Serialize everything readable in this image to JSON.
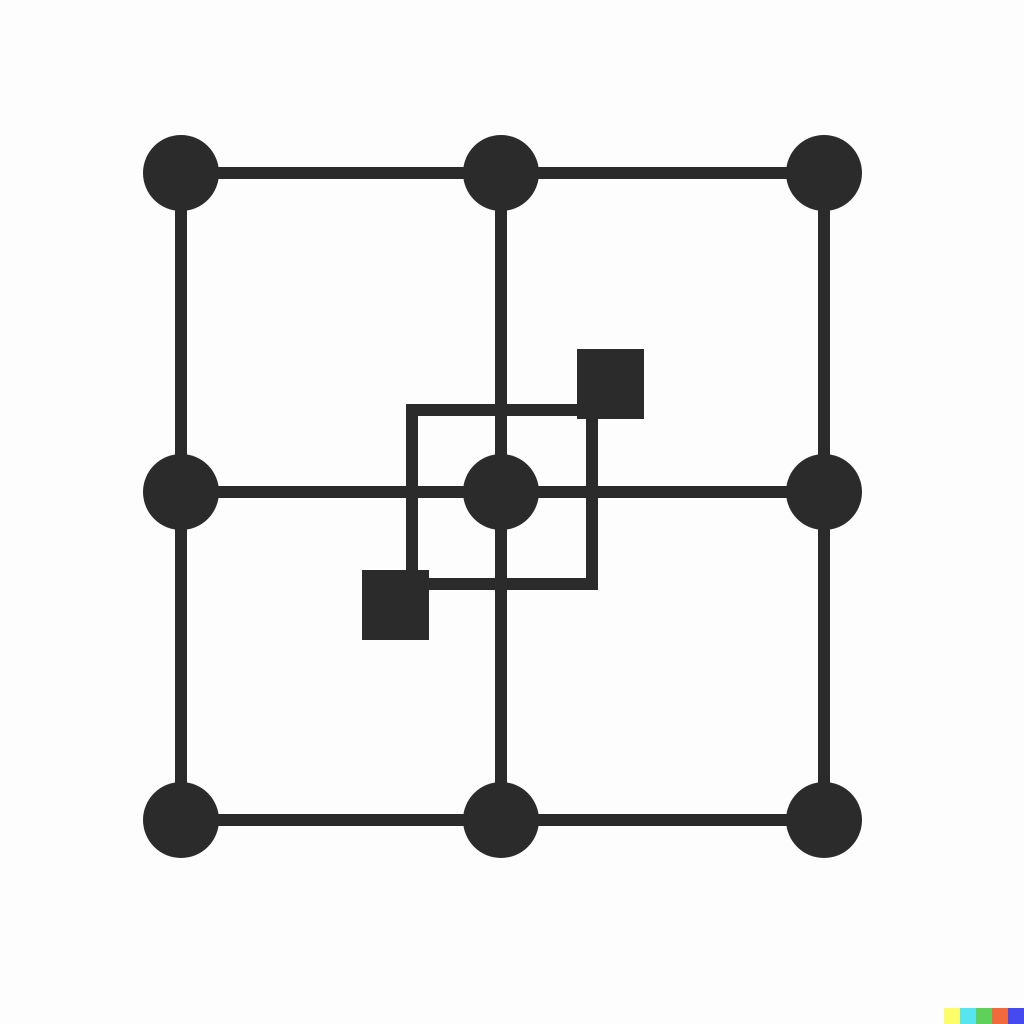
{
  "diagram": {
    "grid": {
      "rows": 3,
      "cols": 3
    },
    "colors": {
      "ink": "#2c2b2c",
      "background": "#fdfdfd"
    },
    "inner_square": {
      "description_shape": "outlined-square"
    },
    "accent_squares": [
      {
        "corner": "top-right"
      },
      {
        "corner": "bottom-left"
      }
    ]
  },
  "watermark": {
    "colors": [
      "#fdfd6a",
      "#57e5ef",
      "#5fd15a",
      "#f26a3c",
      "#4449f0"
    ]
  }
}
